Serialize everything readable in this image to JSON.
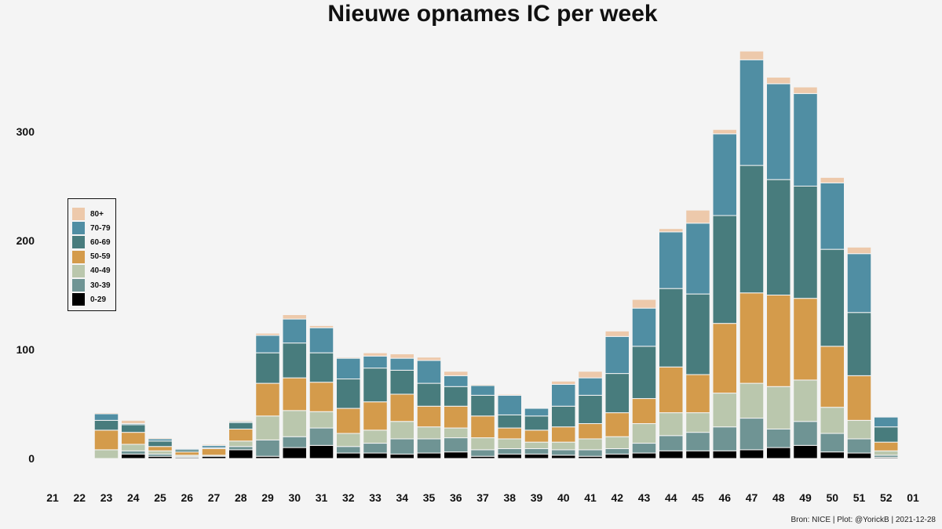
{
  "chart_data": {
    "type": "bar",
    "stacked": true,
    "title": "Nieuwe opnames IC per week",
    "xlabel": "",
    "ylabel": "",
    "ylim": [
      0,
      390
    ],
    "yticks": [
      0,
      100,
      200,
      300
    ],
    "grid": false,
    "legend_position": "left-middle",
    "categories": [
      "21",
      "22",
      "23",
      "24",
      "25",
      "26",
      "27",
      "28",
      "29",
      "30",
      "31",
      "32",
      "33",
      "34",
      "35",
      "36",
      "37",
      "38",
      "39",
      "40",
      "41",
      "42",
      "43",
      "44",
      "45",
      "46",
      "47",
      "48",
      "49",
      "50",
      "51",
      "52",
      "01"
    ],
    "series": [
      {
        "name": "0-29",
        "color": "#000000",
        "values": [
          0,
          0,
          0,
          4,
          2,
          1,
          2,
          8,
          2,
          10,
          12,
          5,
          5,
          4,
          5,
          6,
          2,
          4,
          4,
          3,
          2,
          4,
          5,
          7,
          7,
          7,
          8,
          10,
          12,
          6,
          5,
          1,
          0
        ]
      },
      {
        "name": "30-39",
        "color": "#6f9494",
        "values": [
          0,
          0,
          0,
          3,
          2,
          1,
          0,
          3,
          15,
          10,
          16,
          6,
          9,
          14,
          13,
          13,
          6,
          5,
          5,
          5,
          6,
          5,
          9,
          14,
          17,
          22,
          29,
          17,
          22,
          17,
          13,
          2,
          0
        ]
      },
      {
        "name": "40-49",
        "color": "#bac7ad",
        "values": [
          0,
          0,
          8,
          6,
          3,
          1,
          1,
          5,
          22,
          24,
          15,
          12,
          12,
          16,
          11,
          9,
          11,
          9,
          6,
          7,
          10,
          11,
          18,
          21,
          18,
          31,
          32,
          39,
          38,
          24,
          17,
          4,
          0
        ]
      },
      {
        "name": "50-59",
        "color": "#d49b4b",
        "values": [
          0,
          0,
          18,
          11,
          4,
          3,
          6,
          11,
          30,
          30,
          27,
          23,
          26,
          25,
          19,
          20,
          20,
          10,
          11,
          14,
          14,
          22,
          23,
          42,
          35,
          64,
          83,
          84,
          75,
          56,
          41,
          8,
          0
        ]
      },
      {
        "name": "60-69",
        "color": "#487c7d",
        "values": [
          0,
          0,
          9,
          7,
          5,
          2,
          1,
          6,
          28,
          32,
          27,
          27,
          31,
          22,
          21,
          18,
          19,
          12,
          13,
          19,
          26,
          36,
          48,
          72,
          74,
          99,
          117,
          106,
          103,
          89,
          58,
          14,
          0
        ]
      },
      {
        "name": "70-79",
        "color": "#508ea3",
        "values": [
          0,
          0,
          6,
          1,
          2,
          1,
          2,
          1,
          16,
          22,
          23,
          19,
          11,
          11,
          21,
          10,
          9,
          18,
          7,
          20,
          16,
          34,
          35,
          52,
          65,
          75,
          97,
          88,
          85,
          61,
          54,
          9,
          0
        ]
      },
      {
        "name": "80+",
        "color": "#edc9ab",
        "values": [
          0,
          0,
          1,
          3,
          1,
          0,
          1,
          1,
          2,
          4,
          2,
          1,
          3,
          4,
          3,
          4,
          1,
          1,
          0,
          3,
          6,
          5,
          8,
          3,
          12,
          4,
          8,
          6,
          6,
          5,
          6,
          0,
          0
        ]
      }
    ]
  },
  "caption": "Bron: NICE | Plot: @YorickB |  2021-12-28"
}
